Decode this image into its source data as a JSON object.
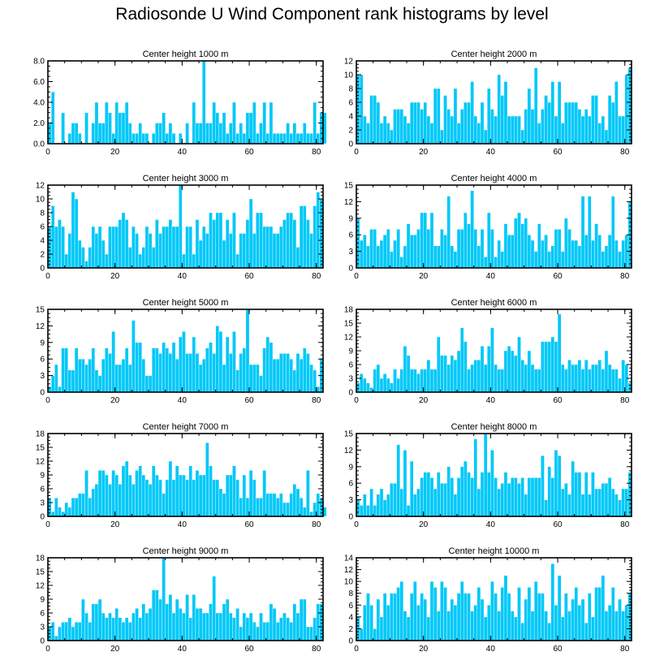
{
  "title": "Radiosonde U Wind Component rank histograms by level",
  "colors": {
    "bar": "#00c8f8",
    "bar_edge": "#ffffff",
    "axis": "#000000"
  },
  "chart_data": [
    {
      "type": "bar",
      "title": "Center height 1000 m",
      "xlim": [
        0,
        82
      ],
      "ylim": [
        0,
        8
      ],
      "xticks": [
        0,
        20,
        40,
        60,
        80
      ],
      "xtick_labels": [
        "0",
        "20",
        "40",
        "60",
        "80"
      ],
      "yticks": [
        0,
        2,
        4,
        6,
        8
      ],
      "ytick_labels": [
        "0.0",
        "2.0",
        "4.0",
        "6.0",
        "8.0"
      ],
      "values": [
        2,
        5,
        0,
        0,
        3,
        0,
        1,
        2,
        2,
        1,
        0,
        3,
        0,
        2,
        4,
        2,
        2,
        4,
        3,
        1,
        4,
        3,
        3,
        4,
        2,
        1,
        1,
        2,
        1,
        1,
        0,
        1,
        2,
        2,
        3,
        1,
        2,
        1,
        0,
        1,
        0,
        2,
        0,
        4,
        2,
        2,
        8,
        2,
        2,
        4,
        3,
        2,
        3,
        1,
        2,
        4,
        1,
        2,
        1,
        3,
        3,
        4,
        1,
        2,
        4,
        1,
        4,
        1,
        1,
        1,
        1,
        2,
        1,
        2,
        1,
        1,
        2,
        1,
        1,
        4,
        1,
        3,
        3
      ]
    },
    {
      "type": "bar",
      "title": "Center height 2000 m",
      "xlim": [
        0,
        82
      ],
      "ylim": [
        0,
        12
      ],
      "xticks": [
        0,
        20,
        40,
        60,
        80
      ],
      "xtick_labels": [
        "0",
        "20",
        "40",
        "60",
        "80"
      ],
      "yticks": [
        0,
        2,
        4,
        6,
        8,
        10,
        12
      ],
      "ytick_labels": [
        "0",
        "2",
        "4",
        "6",
        "8",
        "10",
        "12"
      ],
      "values": [
        10,
        10,
        4,
        3,
        7,
        7,
        6,
        3,
        4,
        3,
        2,
        5,
        5,
        5,
        4,
        3,
        6,
        6,
        6,
        5,
        6,
        4,
        3,
        8,
        8,
        2,
        7,
        5,
        4,
        8,
        3,
        5,
        6,
        6,
        9,
        4,
        3,
        6,
        2,
        8,
        5,
        4,
        10,
        7,
        9,
        4,
        4,
        4,
        4,
        2,
        5,
        8,
        5,
        11,
        3,
        5,
        7,
        6,
        9,
        4,
        9,
        3,
        6,
        6,
        6,
        6,
        5,
        4,
        5,
        4,
        7,
        7,
        3,
        4,
        2,
        7,
        6,
        9,
        4,
        4,
        10,
        11
      ]
    },
    {
      "type": "bar",
      "title": "Center height 3000 m",
      "xlim": [
        0,
        82
      ],
      "ylim": [
        0,
        12
      ],
      "xticks": [
        0,
        20,
        40,
        60,
        80
      ],
      "xtick_labels": [
        "0",
        "20",
        "40",
        "60",
        "80"
      ],
      "yticks": [
        0,
        2,
        4,
        6,
        8,
        10,
        12
      ],
      "ytick_labels": [
        "0",
        "2",
        "4",
        "6",
        "8",
        "10",
        "12"
      ],
      "values": [
        6,
        9,
        6,
        7,
        6,
        2,
        5,
        11,
        10,
        4,
        3,
        1,
        3,
        6,
        5,
        6,
        4,
        2,
        6,
        6,
        6,
        7,
        8,
        7,
        3,
        6,
        5,
        2,
        3,
        6,
        5,
        3,
        7,
        5,
        6,
        6,
        7,
        6,
        6,
        12,
        2,
        6,
        6,
        2,
        7,
        4,
        6,
        5,
        8,
        7,
        8,
        8,
        4,
        7,
        5,
        8,
        2,
        5,
        5,
        7,
        10,
        5,
        8,
        8,
        6,
        6,
        6,
        5,
        5,
        6,
        7,
        8,
        8,
        7,
        3,
        9,
        9,
        7,
        5,
        9,
        11,
        10
      ]
    },
    {
      "type": "bar",
      "title": "Center height 4000 m",
      "xlim": [
        0,
        82
      ],
      "ylim": [
        0,
        15
      ],
      "xticks": [
        0,
        20,
        40,
        60,
        80
      ],
      "xtick_labels": [
        "0",
        "20",
        "40",
        "60",
        "80"
      ],
      "yticks": [
        0,
        3,
        6,
        9,
        12,
        15
      ],
      "ytick_labels": [
        "0",
        "3",
        "6",
        "9",
        "12",
        "15"
      ],
      "values": [
        9,
        5,
        6,
        4,
        7,
        7,
        4,
        5,
        6,
        7,
        3,
        5,
        7,
        2,
        4,
        8,
        6,
        6,
        7,
        10,
        10,
        7,
        10,
        4,
        4,
        7,
        6,
        13,
        4,
        3,
        7,
        7,
        10,
        8,
        14,
        7,
        4,
        7,
        2,
        10,
        7,
        2,
        5,
        3,
        8,
        6,
        6,
        9,
        10,
        8,
        9,
        6,
        5,
        3,
        8,
        5,
        6,
        3,
        4,
        7,
        7,
        3,
        9,
        7,
        5,
        5,
        4,
        13,
        6,
        13,
        5,
        8,
        6,
        3,
        4,
        6,
        13,
        5,
        3,
        5,
        6,
        12
      ]
    },
    {
      "type": "bar",
      "title": "Center height 5000 m",
      "xlim": [
        0,
        82
      ],
      "ylim": [
        0,
        15
      ],
      "xticks": [
        0,
        20,
        40,
        60,
        80
      ],
      "xtick_labels": [
        "0",
        "20",
        "40",
        "60",
        "80"
      ],
      "yticks": [
        0,
        3,
        6,
        9,
        12,
        15
      ],
      "ytick_labels": [
        "0",
        "3",
        "6",
        "9",
        "12",
        "15"
      ],
      "values": [
        1,
        3,
        5,
        1,
        8,
        8,
        4,
        4,
        8,
        6,
        6,
        5,
        6,
        8,
        4,
        3,
        6,
        8,
        7,
        11,
        5,
        5,
        6,
        8,
        5,
        13,
        9,
        9,
        6,
        3,
        3,
        8,
        8,
        7,
        9,
        8,
        7,
        9,
        6,
        10,
        11,
        7,
        7,
        10,
        7,
        5,
        6,
        8,
        9,
        7,
        12,
        11,
        5,
        10,
        7,
        11,
        4,
        7,
        8,
        15,
        5,
        5,
        5,
        3,
        8,
        10,
        9,
        6,
        6,
        7,
        7,
        7,
        6,
        4,
        7,
        6,
        8,
        7,
        5,
        4,
        1,
        6
      ]
    },
    {
      "type": "bar",
      "title": "Center height 6000 m",
      "xlim": [
        0,
        82
      ],
      "ylim": [
        0,
        18
      ],
      "xticks": [
        0,
        20,
        40,
        60,
        80
      ],
      "xtick_labels": [
        "0",
        "20",
        "40",
        "60",
        "80"
      ],
      "yticks": [
        0,
        3,
        6,
        9,
        12,
        15,
        18
      ],
      "ytick_labels": [
        "0",
        "3",
        "6",
        "9",
        "12",
        "15",
        "18"
      ],
      "values": [
        2,
        4,
        3,
        2,
        1,
        5,
        6,
        3,
        4,
        3,
        2,
        5,
        3,
        5,
        10,
        8,
        5,
        5,
        4,
        5,
        5,
        7,
        5,
        5,
        12,
        8,
        8,
        6,
        8,
        7,
        9,
        14,
        11,
        5,
        6,
        7,
        7,
        10,
        6,
        10,
        14,
        6,
        5,
        5,
        9,
        10,
        9,
        8,
        12,
        7,
        6,
        9,
        6,
        5,
        5,
        11,
        11,
        11,
        12,
        11,
        17,
        6,
        5,
        7,
        6,
        6,
        7,
        5,
        7,
        5,
        6,
        6,
        7,
        5,
        9,
        6,
        5,
        5,
        3,
        7,
        6,
        2
      ]
    },
    {
      "type": "bar",
      "title": "Center height 7000 m",
      "xlim": [
        0,
        82
      ],
      "ylim": [
        0,
        18
      ],
      "xticks": [
        0,
        20,
        40,
        60,
        80
      ],
      "xtick_labels": [
        "0",
        "20",
        "40",
        "60",
        "80"
      ],
      "yticks": [
        0,
        3,
        6,
        9,
        12,
        15,
        18
      ],
      "ytick_labels": [
        "0",
        "3",
        "6",
        "9",
        "12",
        "15",
        "18"
      ],
      "values": [
        4,
        1,
        4,
        2,
        1,
        3,
        2,
        4,
        4,
        5,
        5,
        10,
        4,
        6,
        7,
        10,
        10,
        9,
        7,
        10,
        9,
        7,
        11,
        12,
        9,
        7,
        10,
        11,
        9,
        8,
        7,
        11,
        9,
        8,
        5,
        8,
        12,
        8,
        11,
        9,
        9,
        8,
        11,
        8,
        10,
        9,
        9,
        16,
        11,
        8,
        8,
        6,
        5,
        9,
        9,
        11,
        8,
        4,
        9,
        4,
        10,
        8,
        4,
        4,
        10,
        5,
        5,
        5,
        4,
        5,
        3,
        3,
        5,
        7,
        6,
        4,
        2,
        10,
        1,
        3,
        5,
        4,
        2
      ]
    },
    {
      "type": "bar",
      "title": "Center height 8000 m",
      "xlim": [
        0,
        82
      ],
      "ylim": [
        0,
        15
      ],
      "xticks": [
        0,
        20,
        40,
        60,
        80
      ],
      "xtick_labels": [
        "0",
        "20",
        "40",
        "60",
        "80"
      ],
      "yticks": [
        0,
        3,
        6,
        9,
        12,
        15
      ],
      "ytick_labels": [
        "0",
        "3",
        "6",
        "9",
        "12",
        "15"
      ],
      "values": [
        3,
        2,
        4,
        2,
        5,
        2,
        4,
        5,
        3,
        4,
        6,
        6,
        13,
        5,
        12,
        2,
        10,
        4,
        5,
        7,
        8,
        8,
        7,
        5,
        8,
        6,
        6,
        9,
        7,
        4,
        7,
        9,
        10,
        8,
        7,
        14,
        5,
        8,
        15,
        8,
        12,
        7,
        5,
        6,
        8,
        6,
        7,
        7,
        6,
        7,
        4,
        7,
        7,
        7,
        7,
        11,
        3,
        9,
        7,
        12,
        11,
        5,
        6,
        4,
        10,
        8,
        8,
        4,
        8,
        4,
        8,
        5,
        5,
        6,
        6,
        7,
        5,
        4,
        3,
        5,
        5,
        8
      ]
    },
    {
      "type": "bar",
      "title": "Center height 9000 m",
      "xlim": [
        0,
        82
      ],
      "ylim": [
        0,
        18
      ],
      "xticks": [
        0,
        20,
        40,
        60,
        80
      ],
      "xtick_labels": [
        "0",
        "20",
        "40",
        "60",
        "80"
      ],
      "yticks": [
        0,
        3,
        6,
        9,
        12,
        15,
        18
      ],
      "ytick_labels": [
        "0",
        "3",
        "6",
        "9",
        "12",
        "15",
        "18"
      ],
      "values": [
        3,
        4,
        1,
        3,
        4,
        4,
        5,
        3,
        4,
        4,
        9,
        6,
        4,
        8,
        8,
        9,
        6,
        5,
        6,
        5,
        7,
        5,
        4,
        5,
        4,
        6,
        7,
        5,
        8,
        6,
        7,
        11,
        11,
        9,
        18,
        8,
        10,
        6,
        9,
        7,
        6,
        10,
        5,
        10,
        7,
        7,
        6,
        6,
        8,
        14,
        6,
        6,
        8,
        9,
        6,
        5,
        7,
        3,
        6,
        5,
        6,
        4,
        3,
        6,
        4,
        4,
        8,
        7,
        4,
        5,
        6,
        5,
        4,
        8,
        6,
        9,
        9,
        3,
        3,
        5,
        8,
        8
      ]
    },
    {
      "type": "bar",
      "title": "Center height 10000 m",
      "xlim": [
        0,
        82
      ],
      "ylim": [
        0,
        14
      ],
      "xticks": [
        0,
        20,
        40,
        60,
        80
      ],
      "xtick_labels": [
        "0",
        "20",
        "40",
        "60",
        "80"
      ],
      "yticks": [
        0,
        2,
        4,
        6,
        8,
        10,
        12,
        14
      ],
      "ytick_labels": [
        "0",
        "2",
        "4",
        "6",
        "8",
        "10",
        "12",
        "14"
      ],
      "values": [
        4,
        2,
        6,
        8,
        6,
        2,
        7,
        4,
        8,
        6,
        8,
        8,
        9,
        10,
        5,
        4,
        8,
        10,
        6,
        8,
        7,
        4,
        10,
        9,
        5,
        10,
        9,
        5,
        7,
        6,
        8,
        10,
        8,
        8,
        5,
        6,
        9,
        7,
        4,
        6,
        10,
        8,
        5,
        9,
        11,
        8,
        5,
        4,
        9,
        3,
        7,
        9,
        5,
        10,
        8,
        8,
        5,
        3,
        13,
        6,
        11,
        4,
        8,
        5,
        7,
        9,
        6,
        7,
        3,
        8,
        4,
        9,
        9,
        11,
        5,
        6,
        9,
        5,
        7,
        5,
        6,
        8
      ]
    }
  ]
}
